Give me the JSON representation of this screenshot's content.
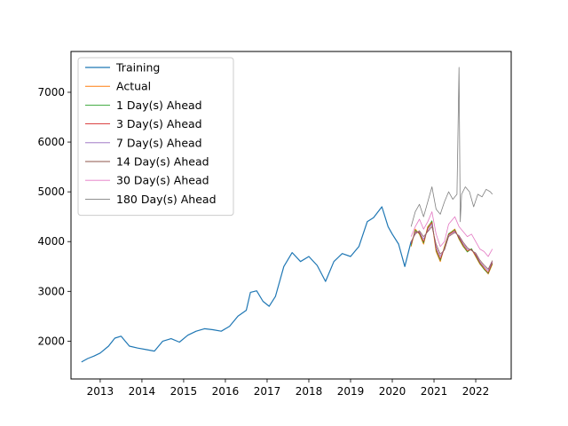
{
  "chart_data": {
    "type": "line",
    "title": "",
    "xlabel": "",
    "ylabel": "",
    "xlim": [
      2012.3,
      2022.85
    ],
    "ylim": [
      1240,
      7820
    ],
    "x_ticks": [
      {
        "value": 2013,
        "label": "2013"
      },
      {
        "value": 2014,
        "label": "2014"
      },
      {
        "value": 2015,
        "label": "2015"
      },
      {
        "value": 2016,
        "label": "2016"
      },
      {
        "value": 2017,
        "label": "2017"
      },
      {
        "value": 2018,
        "label": "2018"
      },
      {
        "value": 2019,
        "label": "2019"
      },
      {
        "value": 2020,
        "label": "2020"
      },
      {
        "value": 2021,
        "label": "2021"
      },
      {
        "value": 2022,
        "label": "2022"
      }
    ],
    "y_ticks": [
      {
        "value": 2000,
        "label": "2000"
      },
      {
        "value": 3000,
        "label": "3000"
      },
      {
        "value": 4000,
        "label": "4000"
      },
      {
        "value": 5000,
        "label": "5000"
      },
      {
        "value": 6000,
        "label": "6000"
      },
      {
        "value": 7000,
        "label": "7000"
      }
    ],
    "legend_position": "top-left",
    "series": [
      {
        "name": "Training",
        "color": "#1f77b4",
        "width": 1.2,
        "x": [
          2012.55,
          2012.7,
          2012.85,
          2013.0,
          2013.2,
          2013.35,
          2013.5,
          2013.7,
          2013.9,
          2014.1,
          2014.3,
          2014.5,
          2014.7,
          2014.9,
          2015.1,
          2015.3,
          2015.5,
          2015.7,
          2015.9,
          2016.1,
          2016.3,
          2016.5,
          2016.6,
          2016.75,
          2016.9,
          2017.05,
          2017.2,
          2017.4,
          2017.6,
          2017.8,
          2018.0,
          2018.2,
          2018.4,
          2018.6,
          2018.8,
          2019.0,
          2019.2,
          2019.4,
          2019.55,
          2019.75,
          2019.9,
          2020.0,
          2020.15,
          2020.3,
          2020.45
        ],
        "y": [
          1580,
          1650,
          1700,
          1760,
          1900,
          2060,
          2100,
          1900,
          1860,
          1830,
          1800,
          2000,
          2050,
          1980,
          2120,
          2200,
          2250,
          2230,
          2200,
          2300,
          2500,
          2620,
          2980,
          3010,
          2800,
          2700,
          2900,
          3500,
          3780,
          3600,
          3700,
          3520,
          3200,
          3600,
          3760,
          3700,
          3900,
          4400,
          4480,
          4700,
          4300,
          4150,
          3950,
          3500,
          4000
        ]
      },
      {
        "name": "Actual",
        "color": "#ff7f0e",
        "width": 1.0,
        "x": [
          2020.45,
          2020.55,
          2020.65,
          2020.75,
          2020.85,
          2020.95,
          2021.05,
          2021.15,
          2021.25,
          2021.35,
          2021.5,
          2021.6,
          2021.7,
          2021.8,
          2021.9,
          2022.0,
          2022.1,
          2022.2,
          2022.3,
          2022.4
        ],
        "y": [
          3900,
          4250,
          4150,
          3950,
          4300,
          4400,
          3800,
          3600,
          3900,
          4150,
          4250,
          4050,
          3900,
          3800,
          3850,
          3700,
          3550,
          3450,
          3350,
          3550
        ]
      },
      {
        "name": "1 Day(s) Ahead",
        "color": "#2ca02c",
        "width": 0.7,
        "x": [
          2020.45,
          2020.55,
          2020.65,
          2020.75,
          2020.85,
          2020.95,
          2021.05,
          2021.15,
          2021.25,
          2021.35,
          2021.5,
          2021.6,
          2021.7,
          2021.8,
          2021.9,
          2022.0,
          2022.1,
          2022.2,
          2022.3,
          2022.4
        ],
        "y": [
          3920,
          4230,
          4160,
          3970,
          4280,
          4420,
          3820,
          3620,
          3880,
          4160,
          4240,
          4060,
          3910,
          3790,
          3860,
          3710,
          3560,
          3440,
          3360,
          3560
        ]
      },
      {
        "name": "3 Day(s) Ahead",
        "color": "#d62728",
        "width": 0.7,
        "x": [
          2020.45,
          2020.55,
          2020.65,
          2020.75,
          2020.85,
          2020.95,
          2021.05,
          2021.15,
          2021.25,
          2021.35,
          2021.5,
          2021.6,
          2021.7,
          2021.8,
          2021.9,
          2022.0,
          2022.1,
          2022.2,
          2022.3,
          2022.4
        ],
        "y": [
          3950,
          4200,
          4180,
          4000,
          4260,
          4380,
          3850,
          3650,
          3860,
          4140,
          4220,
          4080,
          3930,
          3820,
          3840,
          3730,
          3580,
          3470,
          3380,
          3580
        ]
      },
      {
        "name": "7 Day(s) Ahead",
        "color": "#9467bd",
        "width": 0.7,
        "x": [
          2020.45,
          2020.55,
          2020.65,
          2020.75,
          2020.85,
          2020.95,
          2021.05,
          2021.15,
          2021.25,
          2021.35,
          2021.5,
          2021.6,
          2021.7,
          2021.8,
          2021.9,
          2022.0,
          2022.1,
          2022.2,
          2022.3,
          2022.4
        ],
        "y": [
          3980,
          4180,
          4200,
          4050,
          4220,
          4350,
          3900,
          3700,
          3850,
          4120,
          4200,
          4100,
          3960,
          3850,
          3830,
          3750,
          3600,
          3500,
          3420,
          3600
        ]
      },
      {
        "name": "14 Day(s) Ahead",
        "color": "#8c564b",
        "width": 0.7,
        "x": [
          2020.45,
          2020.55,
          2020.65,
          2020.75,
          2020.85,
          2020.95,
          2021.05,
          2021.15,
          2021.25,
          2021.35,
          2021.5,
          2021.6,
          2021.7,
          2021.8,
          2021.9,
          2022.0,
          2022.1,
          2022.2,
          2022.3,
          2022.4
        ],
        "y": [
          4000,
          4150,
          4220,
          4100,
          4200,
          4300,
          3950,
          3750,
          3830,
          4100,
          4180,
          4120,
          3990,
          3880,
          3820,
          3770,
          3630,
          3530,
          3450,
          3620
        ]
      },
      {
        "name": "30 Day(s) Ahead",
        "color": "#e377c2",
        "width": 0.8,
        "x": [
          2020.45,
          2020.55,
          2020.65,
          2020.75,
          2020.85,
          2020.95,
          2021.05,
          2021.15,
          2021.25,
          2021.35,
          2021.5,
          2021.6,
          2021.7,
          2021.8,
          2021.9,
          2022.0,
          2022.1,
          2022.2,
          2022.3,
          2022.4
        ],
        "y": [
          4100,
          4300,
          4450,
          4250,
          4400,
          4600,
          4150,
          3900,
          4000,
          4350,
          4500,
          4300,
          4200,
          4100,
          4150,
          4000,
          3850,
          3800,
          3700,
          3850
        ]
      },
      {
        "name": "180 Day(s) Ahead",
        "color": "#7f7f7f",
        "width": 0.8,
        "x": [
          2020.45,
          2020.55,
          2020.65,
          2020.75,
          2020.85,
          2020.95,
          2021.05,
          2021.15,
          2021.25,
          2021.35,
          2021.45,
          2021.55,
          2021.6,
          2021.63,
          2021.66,
          2021.75,
          2021.85,
          2021.95,
          2022.05,
          2022.15,
          2022.25,
          2022.35,
          2022.4
        ],
        "y": [
          4300,
          4600,
          4750,
          4500,
          4800,
          5100,
          4650,
          4550,
          4800,
          5000,
          4850,
          4950,
          7500,
          4400,
          4950,
          5100,
          5000,
          4700,
          4950,
          4900,
          5050,
          5000,
          4950
        ]
      }
    ]
  }
}
